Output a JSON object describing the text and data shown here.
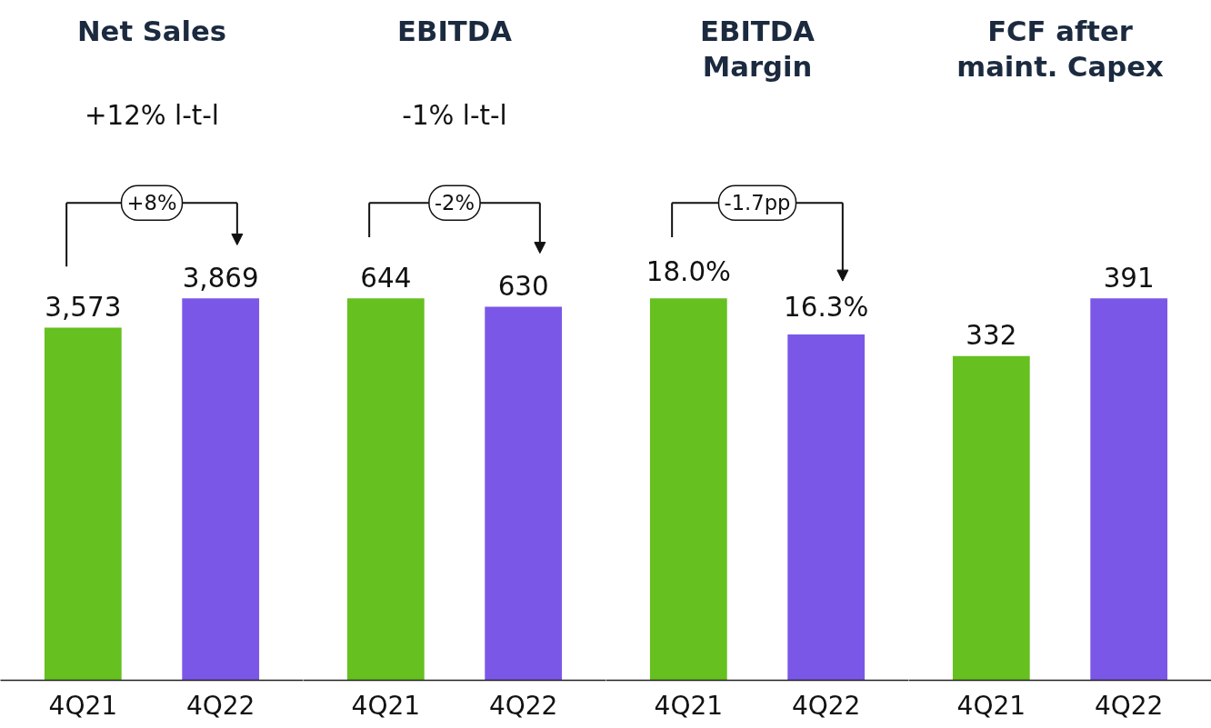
{
  "chart_data": [
    {
      "type": "bar",
      "title": "Net Sales",
      "subtitle": "+12% l-t-l",
      "categories": [
        "4Q21",
        "4Q22"
      ],
      "values": [
        3573,
        3869
      ],
      "colors": [
        "#66c01f",
        "#7b57e8"
      ],
      "value_labels": [
        "3,573",
        "3,869"
      ],
      "annotations": [
        "+8%"
      ],
      "grid": false,
      "legend": false
    },
    {
      "type": "bar",
      "title": "EBITDA",
      "subtitle": "-1% l-t-l",
      "categories": [
        "4Q21",
        "4Q22"
      ],
      "values": [
        644,
        630
      ],
      "colors": [
        "#66c01f",
        "#7b57e8"
      ],
      "value_labels": [
        "644",
        "630"
      ],
      "annotations": [
        "-2%"
      ],
      "grid": false,
      "legend": false
    },
    {
      "type": "bar",
      "title": "EBITDA Margin",
      "categories": [
        "4Q21",
        "4Q22"
      ],
      "values": [
        18.0,
        16.3
      ],
      "colors": [
        "#66c01f",
        "#7b57e8"
      ],
      "value_labels": [
        "18.0%",
        "16.3%"
      ],
      "annotations": [
        "-1.7pp"
      ],
      "grid": false,
      "legend": false
    },
    {
      "type": "bar",
      "title": "FCF after maint. Capex",
      "categories": [
        "4Q21",
        "4Q22"
      ],
      "values": [
        332,
        391
      ],
      "colors": [
        "#66c01f",
        "#7b57e8"
      ],
      "value_labels": [
        "332",
        "391"
      ],
      "grid": false,
      "legend": false
    }
  ]
}
